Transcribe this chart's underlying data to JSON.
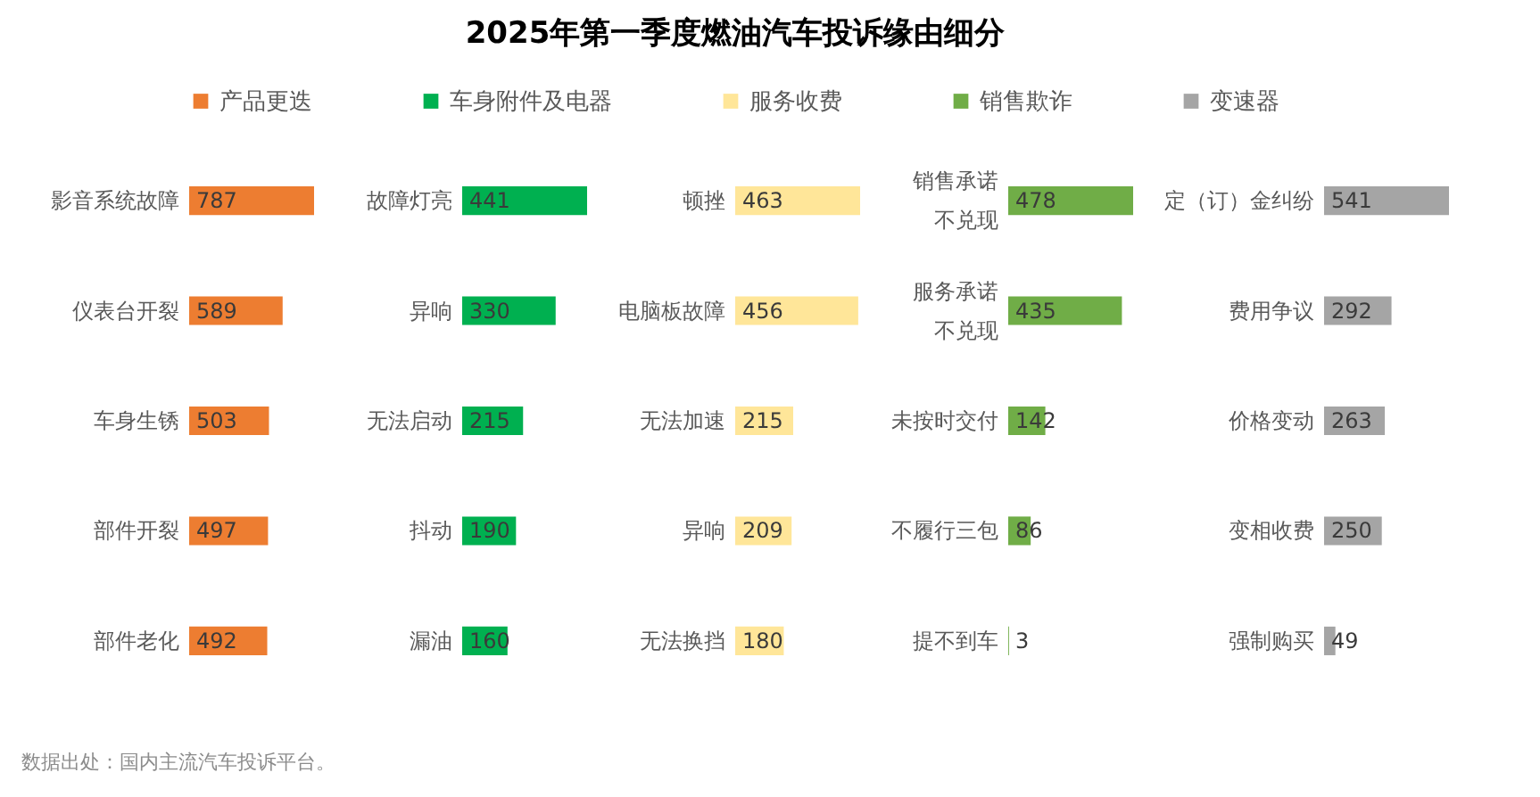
{
  "chart_data": [
    {
      "type": "bar",
      "orientation": "horizontal",
      "annotations": [
        "数据出处：国内主流汽车投诉平台。"
      ],
      "legend": "top",
      "tick_labels": "y",
      "data_labels": true,
      "categories": [
        "影音系统故障",
        "仪表台开裂",
        "车身生锈",
        "部件开裂",
        "部件老化"
      ],
      "xlim": [
        0,
        787
      ],
      "series": [
        {
          "name": "产品更迭",
          "color": "#ed7d31",
          "values": [
            787,
            589,
            503,
            497,
            492
          ]
        }
      ]
    },
    {
      "type": "bar",
      "orientation": "horizontal",
      "legend": "top",
      "tick_labels": "y",
      "data_labels": true,
      "categories": [
        "故障灯亮",
        "异响",
        "无法启动",
        "抖动",
        "漏油"
      ],
      "xlim": [
        0,
        441
      ],
      "series": [
        {
          "name": "车身附件及电器",
          "color": "#00b050",
          "values": [
            441,
            330,
            215,
            190,
            160
          ]
        }
      ]
    },
    {
      "type": "bar",
      "orientation": "horizontal",
      "title": "2025年第一季度燃油汽车投诉缘由细分",
      "legend": "top",
      "tick_labels": "y",
      "data_labels": true,
      "categories": [
        "顿挫",
        "电脑板故障",
        "无法加速",
        "异响",
        "无法换挡"
      ],
      "xlim": [
        0,
        463
      ],
      "series": [
        {
          "name": "服务收费",
          "color": "#ffe699",
          "values": [
            463,
            456,
            215,
            209,
            180
          ]
        }
      ]
    },
    {
      "type": "bar",
      "orientation": "horizontal",
      "legend": "top",
      "tick_labels": "y",
      "data_labels": true,
      "categories": [
        "销售承诺不兑现",
        "服务承诺不兑现",
        "未按时交付",
        "不履行三包",
        "提不到车"
      ],
      "xlim": [
        0,
        478
      ],
      "series": [
        {
          "name": "销售欺诈",
          "color": "#70ad47",
          "values": [
            478,
            435,
            142,
            86,
            3
          ]
        }
      ]
    },
    {
      "type": "bar",
      "orientation": "horizontal",
      "legend": "top",
      "tick_labels": "y",
      "data_labels": true,
      "categories": [
        "定（订）金纠纷",
        "费用争议",
        "价格变动",
        "变相收费",
        "强制购买"
      ],
      "xlim": [
        0,
        541
      ],
      "series": [
        {
          "name": "变速器",
          "color": "#a5a5a5",
          "values": [
            541,
            292,
            263,
            250,
            49
          ]
        }
      ]
    }
  ]
}
